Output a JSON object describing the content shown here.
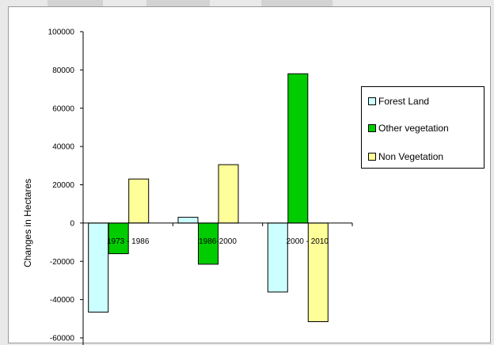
{
  "chart_data": {
    "type": "bar",
    "categories": [
      "1973 - 1986",
      "1986-2000",
      "2000 - 2010"
    ],
    "series": [
      {
        "name": "Forest Land",
        "color": "#ccffff",
        "values": [
          -46500,
          3000,
          -36000
        ]
      },
      {
        "name": "Other vegetation",
        "color": "#00cc00",
        "values": [
          -16000,
          -21500,
          78000
        ]
      },
      {
        "name": "Non Vegetation",
        "color": "#ffff99",
        "values": [
          23000,
          30500,
          -51500
        ]
      }
    ],
    "ylabel": "Changes in Hectares",
    "ylim": [
      -60000,
      100000
    ],
    "yticks": [
      100000,
      80000,
      60000,
      40000,
      20000,
      0,
      -20000,
      -40000,
      -60000
    ],
    "ytick_labels": [
      "100000",
      "80000",
      "60000",
      "40000",
      "20000",
      "0",
      "-20000",
      "-40000",
      "-60000"
    ],
    "grid": false,
    "legend_position": "right"
  }
}
